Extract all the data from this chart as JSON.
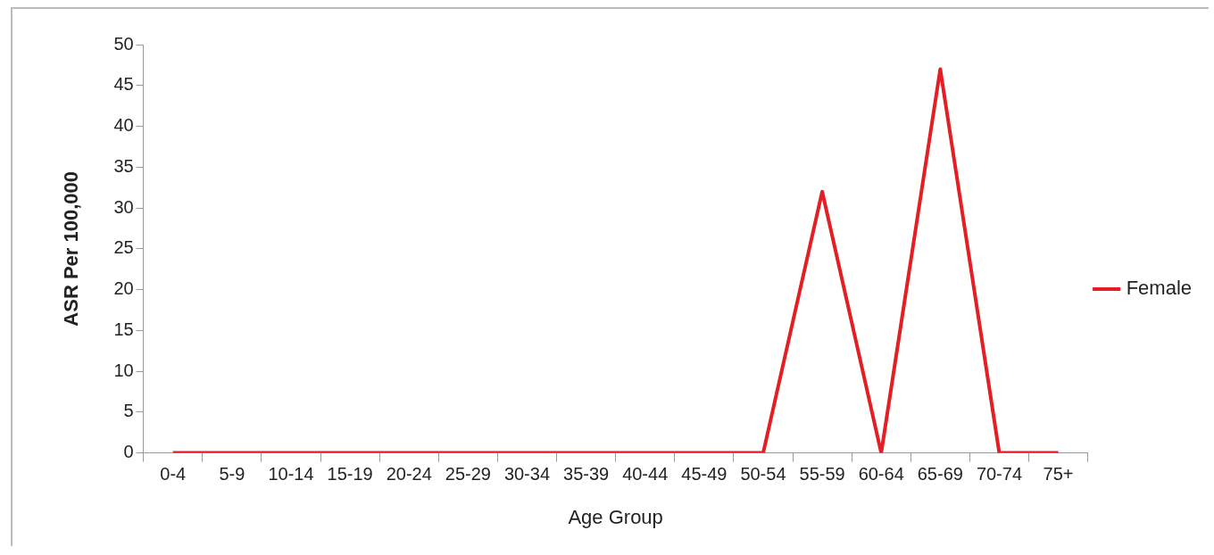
{
  "chart_data": {
    "type": "line",
    "xlabel": "Age Group",
    "ylabel": "ASR Per 100,000",
    "categories": [
      "0-4",
      "5-9",
      "10-14",
      "15-19",
      "20-24",
      "25-29",
      "30-34",
      "35-39",
      "40-44",
      "45-49",
      "50-54",
      "55-59",
      "60-64",
      "65-69",
      "70-74",
      "75+"
    ],
    "series": [
      {
        "name": "Female",
        "color": "#e31e24",
        "values": [
          0,
          0,
          0,
          0,
          0,
          0,
          0,
          0,
          0,
          0,
          0,
          32,
          0,
          47,
          0,
          0
        ]
      }
    ],
    "ylim": [
      0,
      50
    ],
    "yticks": [
      0,
      5,
      10,
      15,
      20,
      25,
      30,
      35,
      40,
      45,
      50
    ],
    "grid": false,
    "legend": "right",
    "marker": "none",
    "line_style": "solid"
  }
}
